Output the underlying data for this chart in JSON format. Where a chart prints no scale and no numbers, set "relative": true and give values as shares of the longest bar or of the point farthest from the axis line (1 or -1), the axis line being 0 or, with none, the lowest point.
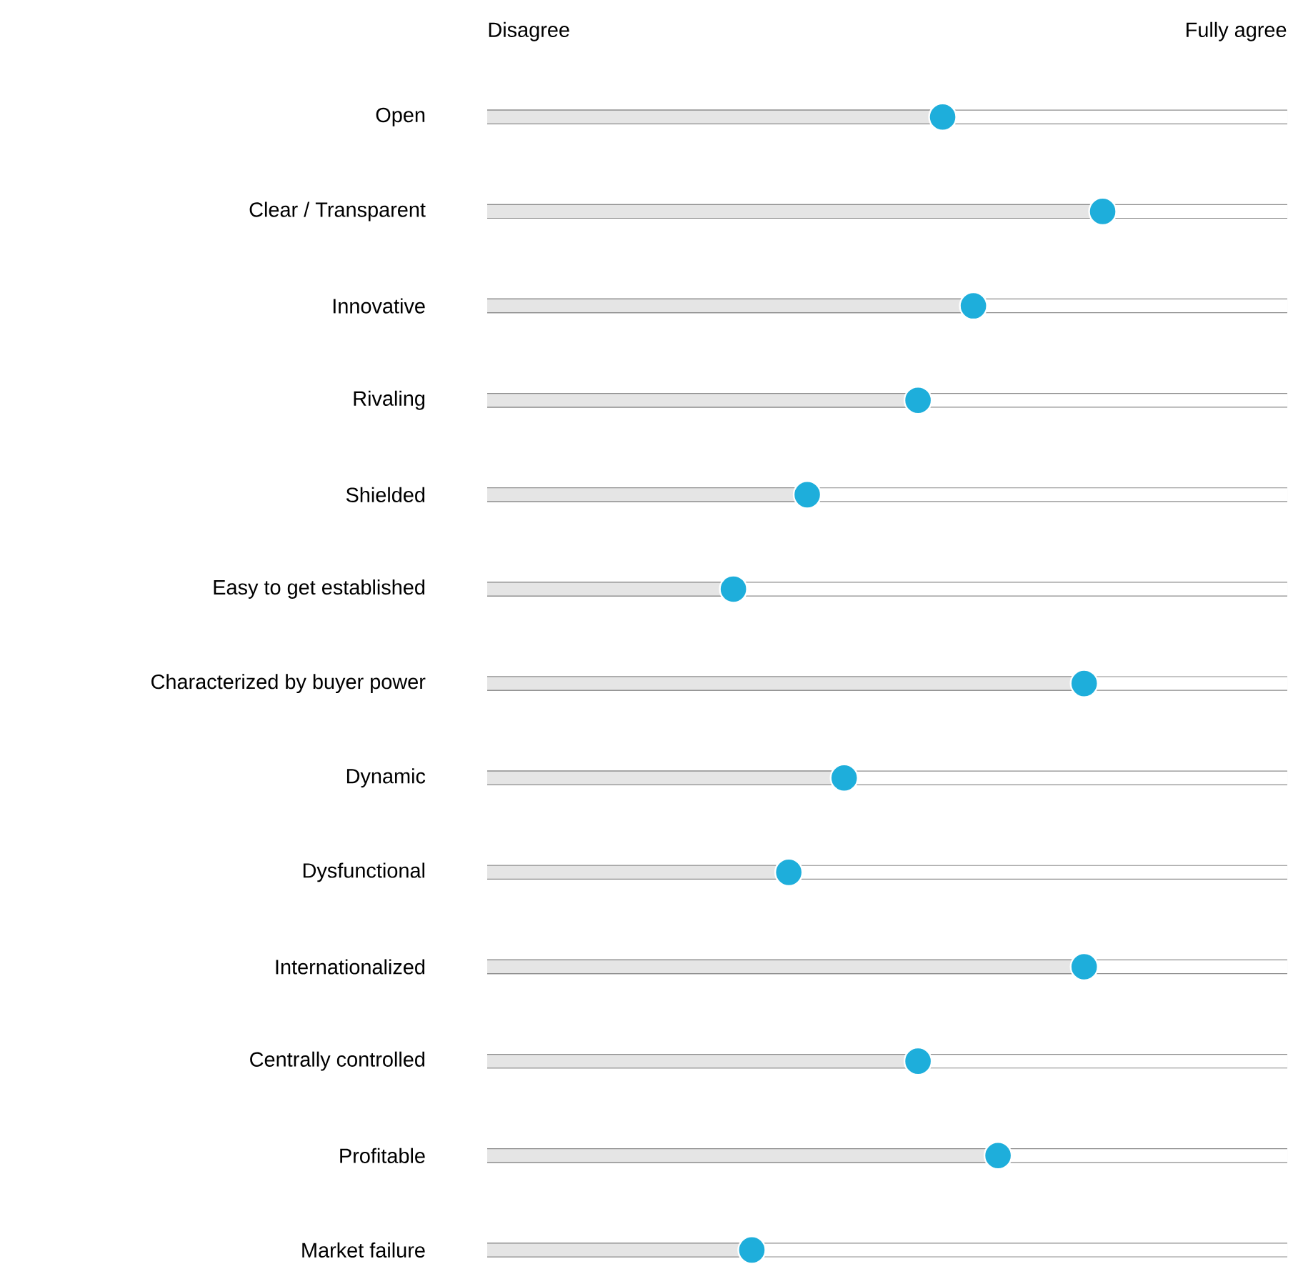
{
  "chart_data": {
    "type": "lollipop",
    "orientation": "horizontal",
    "relative": true,
    "grid": "y",
    "color": "#1eaedb",
    "annotations": [
      "Disagree",
      "Fully agree"
    ],
    "categories": [
      "Open",
      "Clear / Transparent",
      "Innovative",
      "Rivaling",
      "Shielded",
      "Easy to get established",
      "Characterized by buyer power",
      "Dynamic",
      "Dysfunctional",
      "Internationalized",
      "Centrally controlled",
      "Profitable",
      "Market failure"
    ],
    "values": [
      0.74,
      1,
      0.79,
      0.7,
      0.52,
      0.4,
      0.97,
      0.58,
      0.49,
      0.97,
      0.7,
      0.83,
      0.43
    ]
  }
}
